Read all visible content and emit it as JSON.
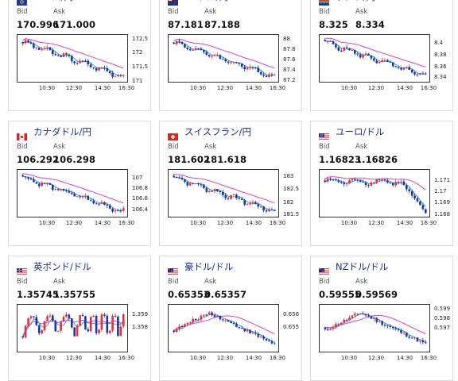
{
  "labels": {
    "bid": "Bid",
    "ask": "Ask"
  },
  "x_ticks": [
    "10:30",
    "12:30",
    "14:30",
    "16:30"
  ],
  "colors": {
    "up": "#e8303a",
    "down": "#1838a8",
    "ma_short": "#37a0dc",
    "ma_long": "#e040c8",
    "title": "#1b2f8f"
  },
  "cards": [
    {
      "pair": "ユーロ/円",
      "flag": "eu-flag-icon",
      "bid": "170.996",
      "ask": "171.000",
      "y_ticks": [
        "172.5",
        "172",
        "171.5",
        "171"
      ],
      "chart_data": {
        "type": "candlestick",
        "trend": "down",
        "ylim": [
          170.9,
          172.6
        ]
      }
    },
    {
      "pair": "NZドル/円",
      "flag": "nz-flag-icon",
      "bid": "87.181",
      "ask": "87.188",
      "y_ticks": [
        "88",
        "87.8",
        "87.6",
        "87.4",
        "87.2"
      ],
      "chart_data": {
        "type": "candlestick",
        "trend": "down",
        "ylim": [
          87.15,
          88.05
        ]
      }
    },
    {
      "pair": "ランド/円",
      "flag": "za-flag-icon",
      "bid": "8.325",
      "ask": "8.334",
      "y_ticks": [
        "8.4",
        "8.38",
        "8.36",
        "8.34"
      ],
      "chart_data": {
        "type": "candlestick",
        "trend": "down",
        "ylim": [
          8.325,
          8.41
        ]
      }
    },
    {
      "pair": "カナダドル/円",
      "flag": "ca-flag-icon",
      "bid": "106.292",
      "ask": "106.298",
      "y_ticks": [
        "107",
        "106.8",
        "106.6",
        "106.4"
      ],
      "chart_data": {
        "type": "candlestick",
        "trend": "down",
        "ylim": [
          106.25,
          107.05
        ]
      }
    },
    {
      "pair": "スイスフラン/円",
      "flag": "ch-flag-icon",
      "bid": "181.602",
      "ask": "181.618",
      "y_ticks": [
        "183",
        "182.5",
        "182",
        "181.5"
      ],
      "chart_data": {
        "type": "candlestick",
        "trend": "down",
        "ylim": [
          181.4,
          183.1
        ]
      }
    },
    {
      "pair": "ユーロ/ドル",
      "flag": "eu-us-flag-icon",
      "bid": "1.16823",
      "ask": "1.16826",
      "y_ticks": [
        "1.171",
        "1.17",
        "1.169",
        "1.168"
      ],
      "chart_data": {
        "type": "candlestick",
        "trend": "flat-then-down",
        "ylim": [
          1.1675,
          1.1715
        ]
      }
    },
    {
      "pair": "英ポンド/ドル",
      "flag": "gb-us-flag-icon",
      "bid": "1.35745",
      "ask": "1.35755",
      "y_ticks": [
        "1.359",
        "1.358"
      ],
      "chart_data": {
        "type": "candlestick",
        "trend": "volatile",
        "ylim": [
          1.3565,
          1.3595
        ]
      }
    },
    {
      "pair": "豪ドル/ドル",
      "flag": "au-us-flag-icon",
      "bid": "0.65353",
      "ask": "0.65357",
      "y_ticks": [
        "0.656",
        "0.655"
      ],
      "chart_data": {
        "type": "candlestick",
        "trend": "up-then-down",
        "ylim": [
          0.6535,
          0.6568
        ]
      }
    },
    {
      "pair": "NZドル/ドル",
      "flag": "nz-us-flag-icon",
      "bid": "0.59555",
      "ask": "0.59569",
      "y_ticks": [
        "0.599",
        "0.598",
        "0.597"
      ],
      "chart_data": {
        "type": "candlestick",
        "trend": "up-then-down",
        "ylim": [
          0.5962,
          0.5995
        ]
      }
    }
  ]
}
